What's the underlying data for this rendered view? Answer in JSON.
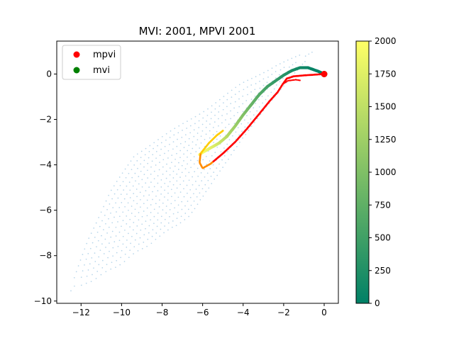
{
  "chart_data": {
    "type": "scatter",
    "title": "MVI: 2001, MPVI 2001",
    "xlabel": "",
    "ylabel": "",
    "xlim": [
      -13.2,
      0.7
    ],
    "ylim": [
      -10.1,
      1.45
    ],
    "xticks": [
      -12,
      -10,
      -8,
      -6,
      -4,
      -2,
      0
    ],
    "yticks": [
      -10,
      -8,
      -6,
      -4,
      -2,
      0
    ],
    "xtick_labels": [
      "−12",
      "−10",
      "−8",
      "−6",
      "−4",
      "−2",
      "0"
    ],
    "ytick_labels": [
      "−10",
      "−8",
      "−6",
      "−4",
      "−2",
      "0"
    ],
    "legend": {
      "position": "top-left",
      "entries": [
        {
          "label": "mpvi",
          "color": "#ff0000"
        },
        {
          "label": "mvi",
          "color": "#008000"
        }
      ]
    },
    "colorbar": {
      "colormap": "summer",
      "range": [
        0,
        2000
      ],
      "ticks": [
        0,
        250,
        500,
        750,
        1000,
        1250,
        1500,
        1750,
        2000
      ],
      "tick_labels": [
        "0",
        "250",
        "500",
        "750",
        "1000",
        "1250",
        "1500",
        "1750",
        "2000"
      ],
      "low_color": "#008066",
      "high_color": "#ffff66"
    },
    "series": [
      {
        "name": "mvi",
        "kind": "trajectory",
        "color_by": "iteration",
        "points": [
          [
            0,
            0
          ],
          [
            -0.3,
            0.12
          ],
          [
            -0.8,
            0.28
          ],
          [
            -1.2,
            0.28
          ],
          [
            -1.6,
            0.15
          ],
          [
            -2.0,
            -0.05
          ],
          [
            -2.4,
            -0.3
          ],
          [
            -2.8,
            -0.55
          ],
          [
            -3.2,
            -0.9
          ],
          [
            -3.6,
            -1.35
          ],
          [
            -4.0,
            -1.8
          ],
          [
            -4.4,
            -2.3
          ],
          [
            -4.8,
            -2.75
          ],
          [
            -5.2,
            -3.05
          ],
          [
            -5.6,
            -3.25
          ],
          [
            -6.0,
            -3.45
          ],
          [
            -6.15,
            -3.55
          ]
        ],
        "end_marker": {
          "label": "mvi",
          "x": 0,
          "y": 0,
          "color": "#008000"
        }
      },
      {
        "name": "mpvi",
        "kind": "trajectory",
        "color_by": "iteration",
        "points": [
          [
            0,
            0
          ],
          [
            -0.5,
            -0.03
          ],
          [
            -1.0,
            -0.06
          ],
          [
            -1.5,
            -0.1
          ],
          [
            -1.85,
            -0.2
          ],
          [
            -2.05,
            -0.45
          ],
          [
            -2.3,
            -0.8
          ],
          [
            -2.7,
            -1.2
          ],
          [
            -3.2,
            -1.75
          ],
          [
            -3.8,
            -2.4
          ],
          [
            -4.4,
            -3.0
          ],
          [
            -5.0,
            -3.5
          ],
          [
            -5.6,
            -3.95
          ],
          [
            -6.0,
            -4.15
          ],
          [
            -6.15,
            -3.9
          ],
          [
            -6.1,
            -3.5
          ],
          [
            -5.7,
            -3.05
          ],
          [
            -5.3,
            -2.7
          ],
          [
            -5.0,
            -2.5
          ]
        ],
        "end_marker": {
          "label": "mpvi",
          "x": 0,
          "y": 0,
          "color": "#ff0000"
        }
      },
      {
        "name": "mpvi",
        "kind": "side-branch",
        "color": "#ff0000",
        "points": [
          [
            -2.05,
            -0.45
          ],
          [
            -1.8,
            -0.3
          ],
          [
            -1.4,
            -0.25
          ],
          [
            -1.2,
            -0.28
          ]
        ]
      }
    ],
    "background_cloud": {
      "color": "#9ec7e3",
      "spine": [
        [
          -12.5,
          -9.55
        ],
        [
          -11.0,
          -7.9
        ],
        [
          -9.5,
          -6.3
        ],
        [
          -8.0,
          -4.9
        ],
        [
          -6.5,
          -3.6
        ],
        [
          -5.0,
          -2.3
        ],
        [
          -3.5,
          -1.0
        ],
        [
          -2.0,
          0.1
        ],
        [
          -0.6,
          0.95
        ]
      ],
      "widths": [
        0.05,
        0.9,
        1.5,
        1.9,
        1.5,
        1.1,
        0.8,
        0.45,
        0.05
      ]
    }
  }
}
